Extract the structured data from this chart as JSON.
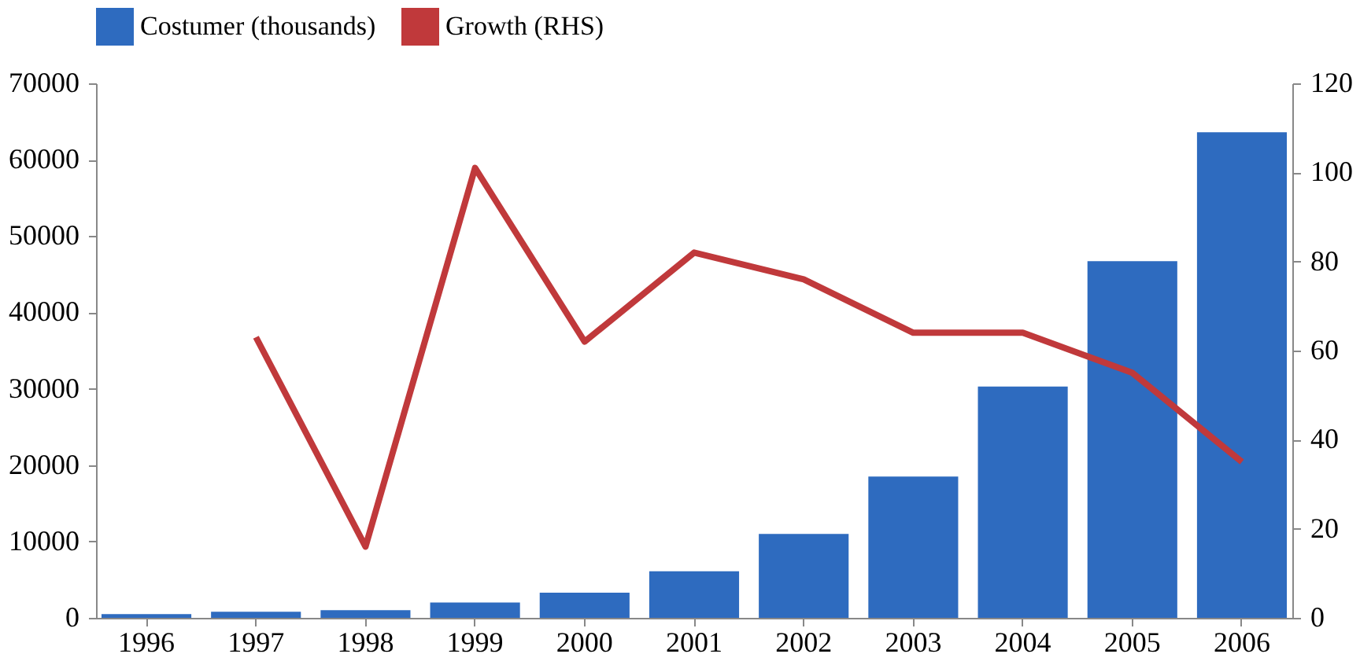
{
  "chart_data": {
    "type": "bar",
    "categories": [
      "1996",
      "1997",
      "1998",
      "1999",
      "2000",
      "2001",
      "2002",
      "2003",
      "2004",
      "2005",
      "2006"
    ],
    "series": [
      {
        "name": "Costumer (thousands)",
        "color": "#2e6bbf",
        "values": [
          500,
          800,
          1000,
          2000,
          3300,
          6100,
          11000,
          18500,
          30300,
          46700,
          63600
        ]
      },
      {
        "name": "Growth (RHS)",
        "color": "#c0393b",
        "type": "line",
        "axis": "y2",
        "values": [
          null,
          63,
          16,
          101,
          62,
          82,
          76,
          64,
          64,
          55,
          35
        ]
      }
    ],
    "ylim": [
      0,
      70000
    ],
    "yticks": [
      0,
      10000,
      20000,
      30000,
      40000,
      50000,
      60000,
      70000
    ],
    "y2lim": [
      0,
      120
    ],
    "y2ticks": [
      0,
      20,
      40,
      60,
      80,
      100,
      120
    ],
    "legend": "top",
    "grid": false
  }
}
